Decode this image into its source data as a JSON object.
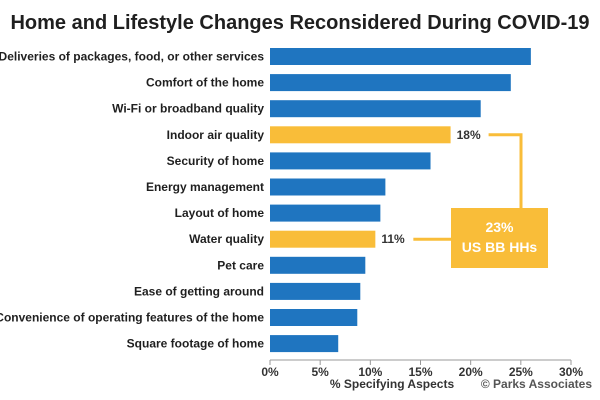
{
  "chart_data": {
    "type": "bar",
    "orientation": "horizontal",
    "title": "Home and Lifestyle Changes Reconsidered During COVID-19",
    "xlabel": "% Specifying Aspects",
    "ylabel": "",
    "xlim": [
      0,
      30
    ],
    "x_ticks": [
      "0%",
      "5%",
      "10%",
      "15%",
      "20%",
      "25%",
      "30%"
    ],
    "categories": [
      "Deliveries of packages, food, or other services",
      "Comfort of the home",
      "Wi-Fi or broadband quality",
      "Indoor air quality",
      "Security of home",
      "Energy management",
      "Layout of home",
      "Water quality",
      "Pet care",
      "Ease of getting around",
      "Convenience of operating features of the home",
      "Square footage of home"
    ],
    "values": [
      26,
      24,
      21,
      18,
      16,
      11.5,
      11,
      10.5,
      9.5,
      9,
      8.7,
      6.8
    ],
    "highlighted": [
      false,
      false,
      false,
      true,
      false,
      false,
      false,
      true,
      false,
      false,
      false,
      false
    ],
    "data_labels": [
      "",
      "",
      "",
      "18%",
      "",
      "",
      "",
      "11%",
      "",
      "",
      "",
      ""
    ],
    "callout": {
      "line1": "23%",
      "line2": "US BB HHs"
    },
    "colors": {
      "bar": "#1f75c0",
      "highlight": "#f9bd39",
      "callout": "#f9bd39",
      "axis": "#999999"
    },
    "source": "© Parks Associates",
    "grid": false
  }
}
